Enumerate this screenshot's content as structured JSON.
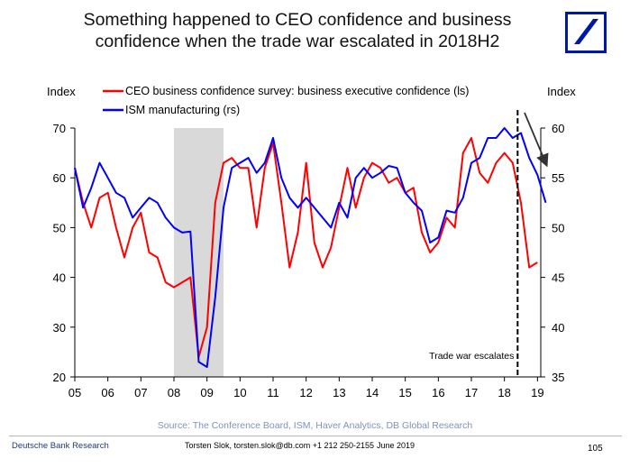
{
  "header": {
    "title_line1": "Something happened to CEO confidence and business",
    "title_line2": "confidence when the trade war escalated in 2018H2"
  },
  "brand": {
    "logo": "deutsche-bank-slash-logo",
    "color": "#0018a8"
  },
  "chart_data": {
    "type": "line",
    "x_ticks": [
      "05",
      "06",
      "07",
      "08",
      "09",
      "10",
      "11",
      "12",
      "13",
      "14",
      "15",
      "16",
      "17",
      "18",
      "19"
    ],
    "y_left": {
      "label": "Index",
      "range": [
        20,
        70
      ],
      "ticks": [
        20,
        30,
        40,
        50,
        60,
        70
      ]
    },
    "y_right": {
      "label": "Index",
      "range": [
        35,
        60
      ],
      "ticks": [
        35,
        40,
        45,
        50,
        55,
        60
      ]
    },
    "recession_shading": {
      "start": 2008.0,
      "end": 2009.5,
      "color": "#d9d9d9"
    },
    "annotation": {
      "text": "Trade war escalates",
      "x": 2018.4
    },
    "series": [
      {
        "name": "CEO business confidence survey: business executive confidence (ls)",
        "axis": "left",
        "color": "#ff0000",
        "x": [
          2005.0,
          2005.25,
          2005.5,
          2005.75,
          2006.0,
          2006.25,
          2006.5,
          2006.75,
          2007.0,
          2007.25,
          2007.5,
          2007.75,
          2008.0,
          2008.25,
          2008.5,
          2008.75,
          2009.0,
          2009.25,
          2009.5,
          2009.75,
          2010.0,
          2010.25,
          2010.5,
          2010.75,
          2011.0,
          2011.25,
          2011.5,
          2011.75,
          2012.0,
          2012.25,
          2012.5,
          2012.75,
          2013.0,
          2013.25,
          2013.5,
          2013.75,
          2014.0,
          2014.25,
          2014.5,
          2014.75,
          2015.0,
          2015.25,
          2015.5,
          2015.75,
          2016.0,
          2016.25,
          2016.5,
          2016.75,
          2017.0,
          2017.25,
          2017.5,
          2017.75,
          2018.0,
          2018.25,
          2018.5,
          2018.75,
          2019.0
        ],
        "values": [
          62,
          55,
          50,
          56,
          57,
          50,
          44,
          50,
          53,
          45,
          44,
          39,
          38,
          39,
          40,
          24,
          30,
          55,
          63,
          64,
          62,
          62,
          50,
          62,
          67,
          55,
          42,
          49,
          63,
          47,
          42,
          46,
          54,
          62,
          54,
          60,
          63,
          62,
          59,
          60,
          57,
          58,
          49,
          45,
          47,
          52,
          50,
          65,
          68,
          61,
          59,
          63,
          65,
          63,
          55,
          42,
          43
        ]
      },
      {
        "name": "ISM manufacturing (rs)",
        "axis": "right",
        "color": "#0000ff",
        "x": [
          2005.0,
          2005.25,
          2005.5,
          2005.75,
          2006.0,
          2006.25,
          2006.5,
          2006.75,
          2007.0,
          2007.25,
          2007.5,
          2007.75,
          2008.0,
          2008.25,
          2008.5,
          2008.75,
          2009.0,
          2009.25,
          2009.5,
          2009.75,
          2010.0,
          2010.25,
          2010.5,
          2010.75,
          2011.0,
          2011.25,
          2011.5,
          2011.75,
          2012.0,
          2012.25,
          2012.5,
          2012.75,
          2013.0,
          2013.25,
          2013.5,
          2013.75,
          2014.0,
          2014.25,
          2014.5,
          2014.75,
          2015.0,
          2015.25,
          2015.5,
          2015.75,
          2016.0,
          2016.25,
          2016.5,
          2016.75,
          2017.0,
          2017.25,
          2017.5,
          2017.75,
          2018.0,
          2018.25,
          2018.5,
          2018.75,
          2019.0,
          2019.25
        ],
        "values": [
          56,
          52,
          54,
          56.5,
          55,
          53.5,
          53,
          51,
          52,
          53,
          52.5,
          51,
          50,
          49.5,
          49.6,
          36.5,
          36,
          43,
          52,
          56,
          56.5,
          57,
          55.5,
          56.5,
          59,
          55,
          53,
          52,
          53,
          52,
          51,
          50,
          52.5,
          51,
          55,
          56,
          55,
          55.5,
          56.2,
          56,
          53.5,
          52.5,
          51.7,
          48.5,
          49,
          51.7,
          51.5,
          53,
          56.5,
          57,
          59,
          59,
          60,
          59,
          59.5,
          57,
          55.3,
          52.5
        ]
      }
    ]
  },
  "source": "Source: The Conference Board, ISM, Haver Analytics, DB Global Research",
  "footer": {
    "left": "Deutsche Bank Research",
    "author": "Torsten Slok, torsten.slok@db.com +1 212 250-2155",
    "date": "June 2019",
    "page": "105"
  }
}
